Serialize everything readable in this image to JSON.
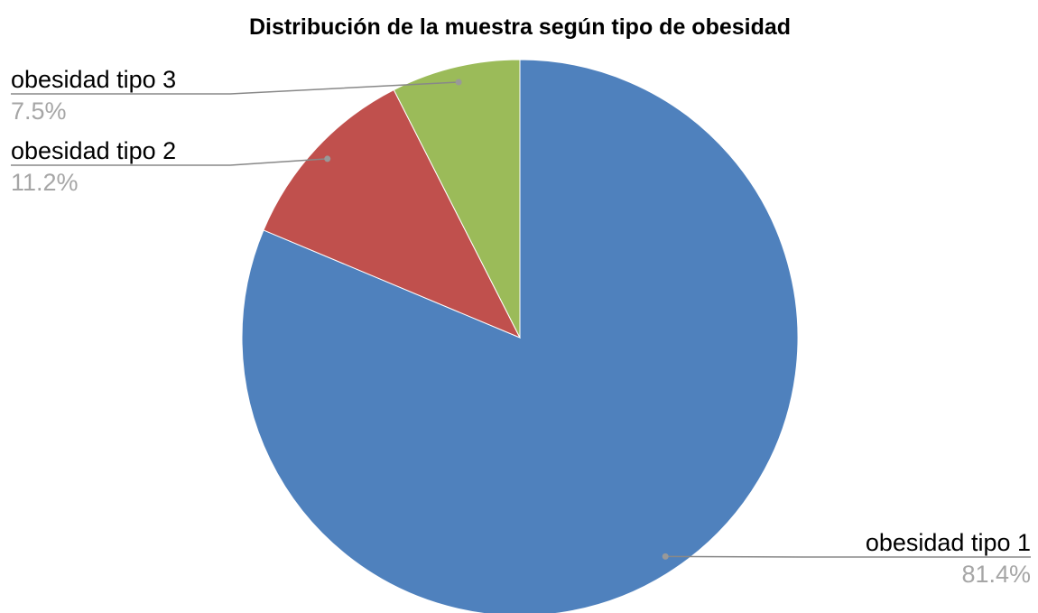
{
  "chart_data": {
    "type": "pie",
    "title": "Distribución de la muestra según tipo de obesidad",
    "categories": [
      "obesidad tipo 1",
      "obesidad tipo 2",
      "obesidad tipo 3"
    ],
    "values": [
      81.4,
      11.2,
      7.5
    ],
    "value_labels": [
      "81.4%",
      "11.2%",
      "7.5%"
    ],
    "colors": [
      "#4f81bd",
      "#c0504d",
      "#9bbb59"
    ]
  }
}
